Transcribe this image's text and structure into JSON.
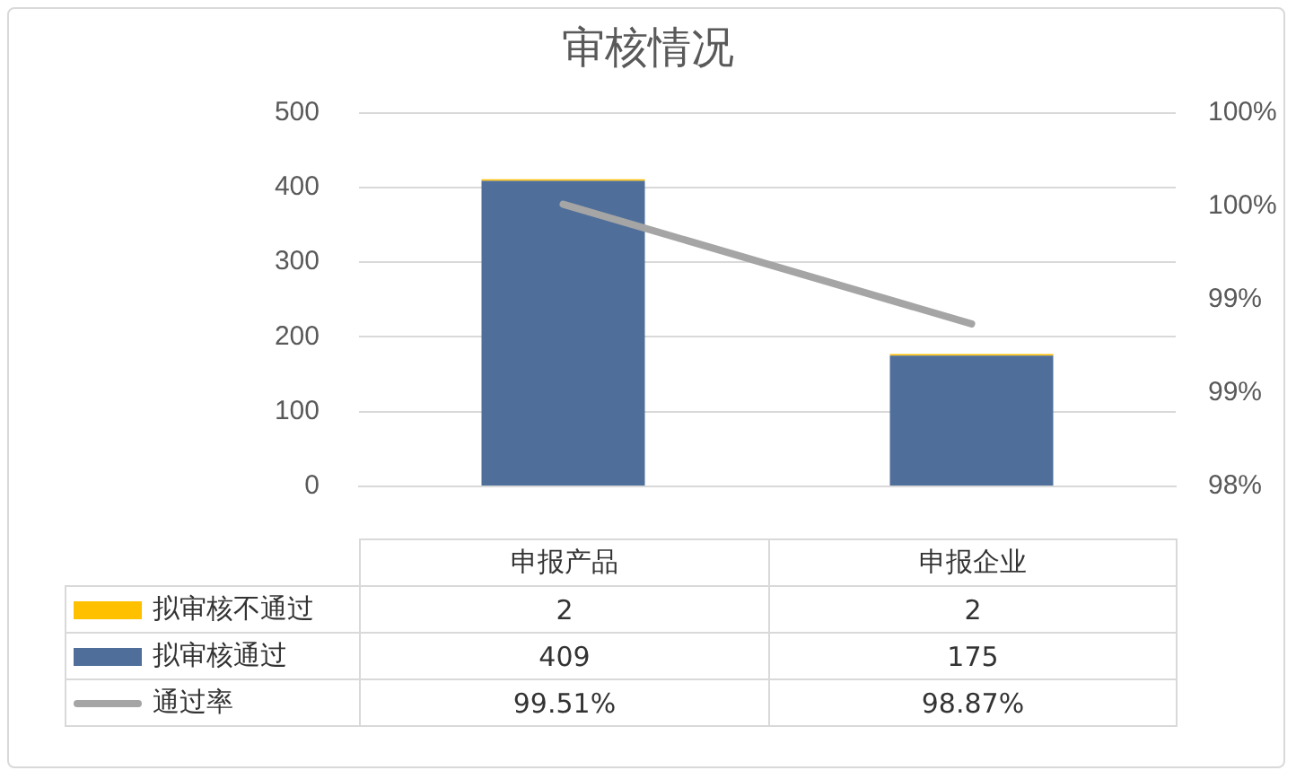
{
  "chart_data": {
    "type": "bar",
    "title": "审核情况",
    "stacked": true,
    "grid": "y",
    "legend": "bottom",
    "data_labels": true,
    "categories": [
      "申报产品",
      "申报企业"
    ],
    "series": [
      {
        "name": "拟审核通过",
        "color": "#4f6f9a",
        "values": [
          409,
          175
        ]
      },
      {
        "name": "拟审核不通过",
        "color": "#ffc000",
        "values": [
          2,
          2
        ]
      },
      {
        "name": "通过率",
        "type": "line",
        "axis": "y2",
        "color": "#a5a5a5",
        "values": [
          99.51,
          98.87
        ],
        "value_labels": [
          "99.51%",
          "98.87%"
        ]
      }
    ],
    "ylim": [
      0,
      500
    ],
    "yticks": [
      0,
      100,
      200,
      300,
      400,
      500
    ],
    "y2lim": [
      98,
      100
    ],
    "y2ticks": [
      {
        "value": 98,
        "label": "98%"
      },
      {
        "value": 98.5,
        "label": "99%"
      },
      {
        "value": 99,
        "label": "99%"
      },
      {
        "value": 99.5,
        "label": "100%"
      },
      {
        "value": 100,
        "label": "100%"
      }
    ],
    "marker": "none"
  }
}
